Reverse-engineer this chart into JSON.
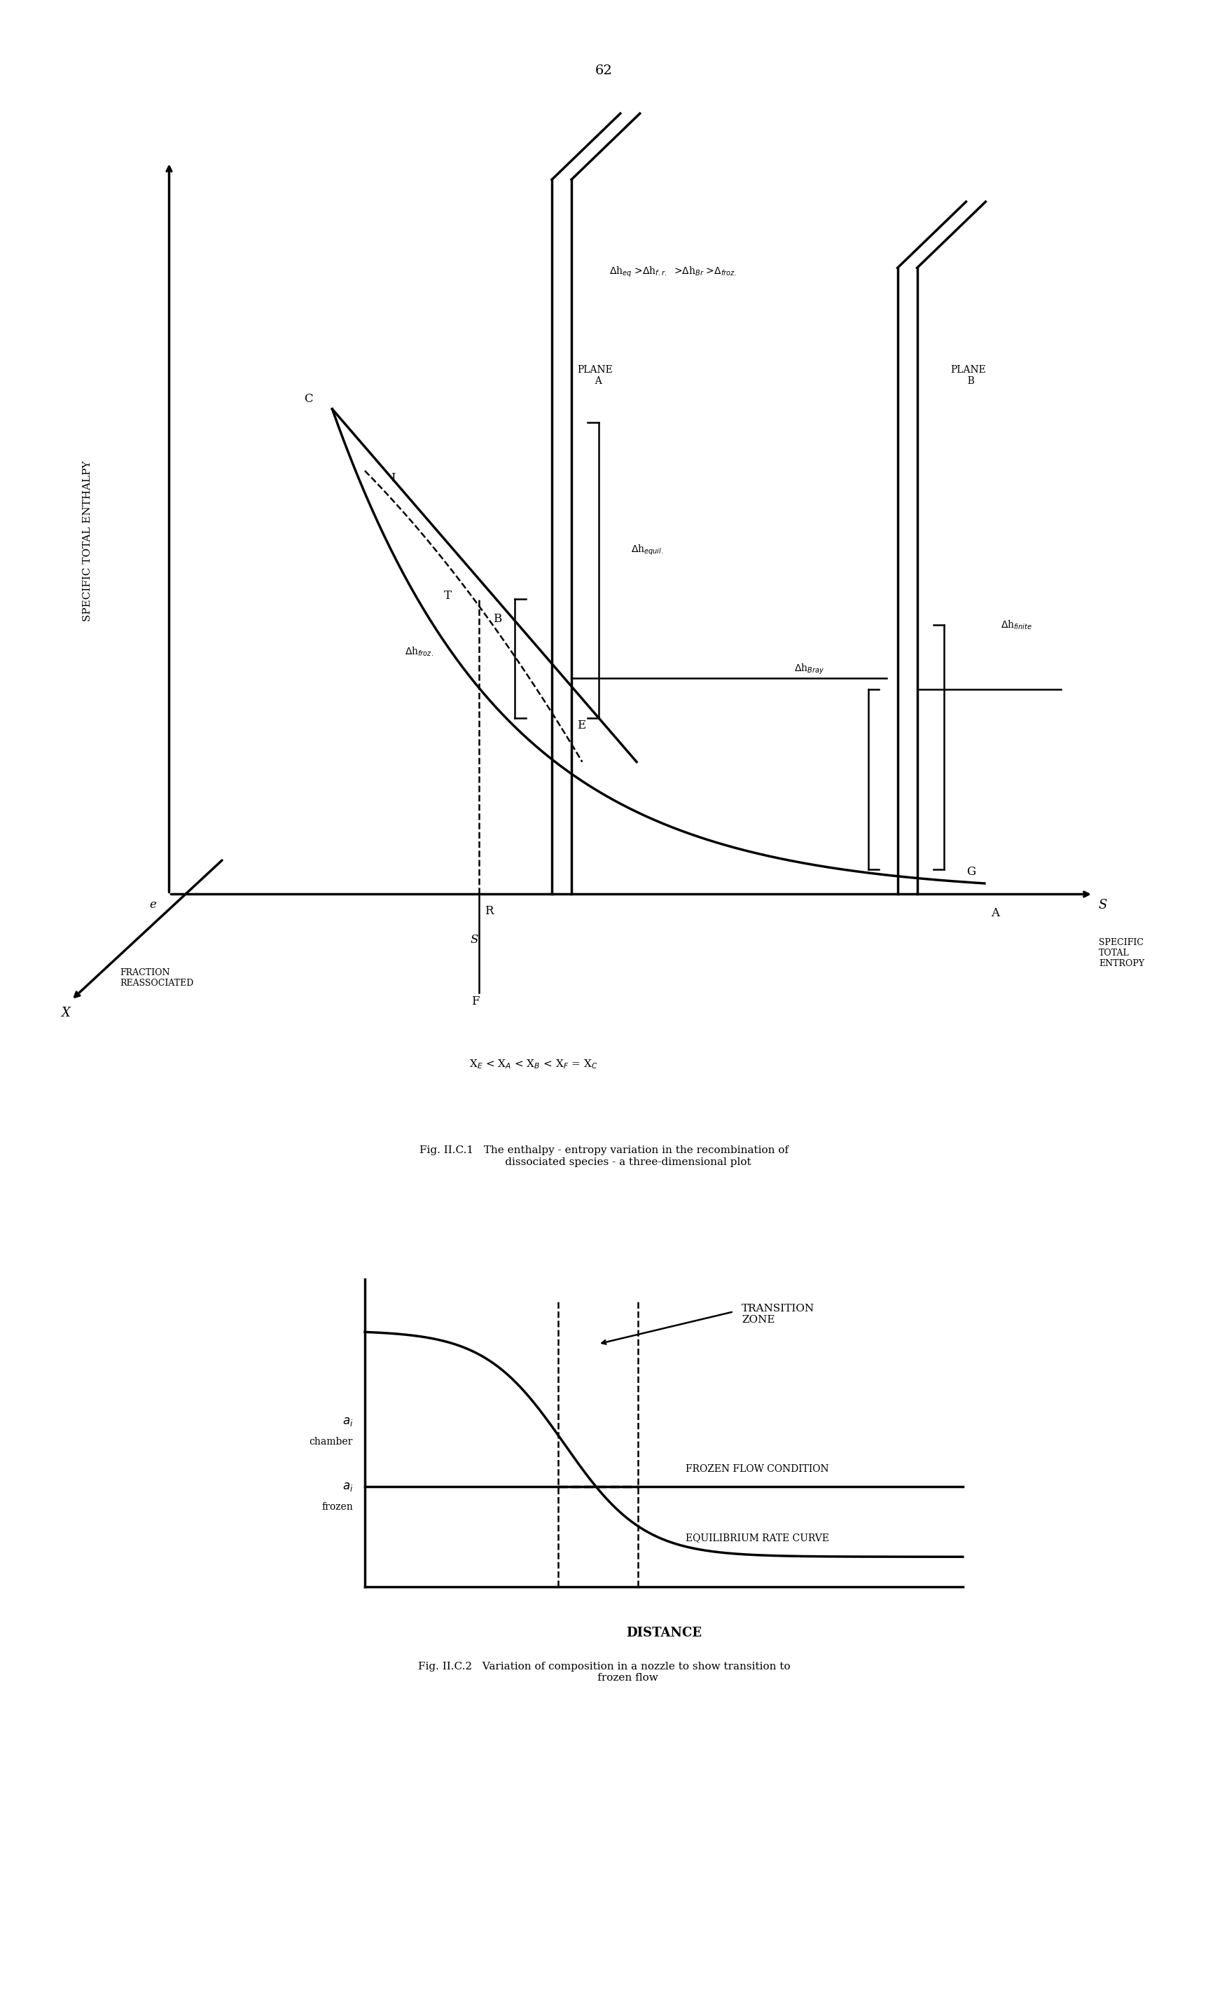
{
  "page_number": "62",
  "fig1": {
    "title": "Fig. II.C.1   The enthalpy - entropy variation in the recombination of\n              dissociated species - a three-dimensional plot",
    "ylabel": "SPECIFIC TOTAL ENTHALPY",
    "label_s": "S",
    "label_entropy": "SPECIFIC\nTOTAL\nENTROPY",
    "label_x": "X",
    "label_frac": "FRACTION\nREASSOCIATED",
    "label_epsilon": "e",
    "label_plane_a": "PLANE\n  A",
    "label_plane_b": "PLANE\n  B",
    "label_ann_eq": "$\\Delta$h$_{eq}$ >$\\Delta$h$_{f.r.}$  >$\\Delta$h$_{Br}$ >$\\Delta_{froz.}$",
    "label_froz": "$\\Delta$h$_{froz.}$",
    "label_equil": "$\\Delta$h$_{equil.}$",
    "label_bray": "$\\Delta$h$_{Bray}$",
    "label_finite": "$\\Delta$h$_{finite}$",
    "label_bottom": "X$_E$ < X$_A$ < X$_B$ < X$_F$ = X$_C$",
    "points": {
      "C": [
        2.5,
        7.0
      ],
      "I": [
        3.1,
        6.1
      ],
      "T": [
        3.75,
        4.85
      ],
      "B": [
        3.95,
        4.6
      ],
      "E": [
        4.72,
        3.5
      ],
      "R": [
        3.87,
        1.38
      ],
      "S_pt": [
        3.75,
        1.05
      ],
      "G": [
        8.45,
        1.72
      ],
      "A": [
        8.58,
        1.3
      ],
      "F": [
        3.8,
        0.38
      ]
    }
  },
  "fig2": {
    "title": "Fig. II.C.2   Variation of composition in a nozzle to show transition to\n              frozen flow",
    "xlabel": "DISTANCE",
    "label_chamber": "chamber",
    "label_frozen": "frozen",
    "label_transition": "TRANSITION\nZONE",
    "label_frozen_cond": "FROZEN FLOW CONDITION",
    "label_equil": "EQUILIBRIUM RATE CURVE"
  },
  "colors": {
    "black": "#000000",
    "white": "#ffffff"
  },
  "lw": 1.8,
  "lw2": 2.5
}
